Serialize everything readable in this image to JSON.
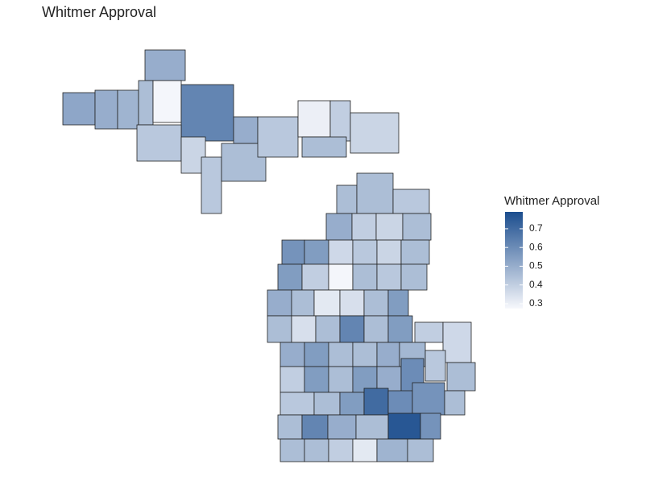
{
  "chart_data": {
    "type": "choropleth",
    "title": "Whitmer Approval",
    "legend_title": "Whitmer Approval",
    "values": [
      0.52,
      0.5,
      0.5,
      0.48,
      0.45,
      0.28,
      0.62,
      0.42,
      0.38,
      0.42,
      0.45,
      0.5,
      0.42,
      0.3,
      0.4,
      0.45,
      0.38,
      0.45,
      0.45,
      0.42,
      0.5,
      0.4,
      0.38,
      0.45,
      0.58,
      0.55,
      0.37,
      0.42,
      0.38,
      0.45,
      0.55,
      0.4,
      0.28,
      0.45,
      0.42,
      0.45,
      0.5,
      0.45,
      0.32,
      0.35,
      0.45,
      0.55,
      0.45,
      0.35,
      0.45,
      0.62,
      0.45,
      0.55,
      0.4,
      0.37,
      0.5,
      0.55,
      0.45,
      0.45,
      0.5,
      0.47,
      0.42,
      0.4,
      0.55,
      0.45,
      0.55,
      0.5,
      0.6,
      0.45,
      0.42,
      0.45,
      0.55,
      0.7,
      0.6,
      0.58,
      0.45,
      0.45,
      0.62,
      0.5,
      0.45,
      0.76,
      0.58,
      0.45,
      0.45,
      0.4,
      0.32,
      0.48,
      0.45
    ],
    "colorscale": [
      "#f7f8fc",
      "#1b4d8e"
    ],
    "zlim": [
      0.274,
      0.79
    ],
    "zticks": [
      0.3,
      0.4,
      0.5,
      0.6,
      0.7
    ],
    "legend": "right"
  }
}
